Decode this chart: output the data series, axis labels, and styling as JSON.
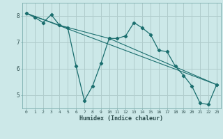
{
  "xlabel": "Humidex (Indice chaleur)",
  "bg_color": "#cce8e8",
  "grid_color": "#b0cccc",
  "line_color": "#1a6e6e",
  "xlim": [
    -0.5,
    23.5
  ],
  "ylim": [
    4.5,
    8.5
  ],
  "xticks": [
    0,
    1,
    2,
    3,
    4,
    5,
    6,
    7,
    8,
    9,
    10,
    11,
    12,
    13,
    14,
    15,
    16,
    17,
    18,
    19,
    20,
    21,
    22,
    23
  ],
  "yticks": [
    5,
    6,
    7,
    8
  ],
  "series1_x": [
    0,
    1,
    2,
    3,
    4,
    5,
    6,
    7,
    8,
    9,
    10,
    11,
    12,
    13,
    14,
    15,
    16,
    17,
    18,
    19,
    20,
    21,
    22,
    23
  ],
  "series1_y": [
    8.1,
    7.95,
    7.75,
    8.05,
    7.65,
    7.55,
    6.1,
    4.8,
    5.35,
    6.2,
    7.15,
    7.15,
    7.25,
    7.75,
    7.55,
    7.3,
    6.7,
    6.65,
    6.1,
    5.75,
    5.35,
    4.7,
    4.65,
    5.4
  ],
  "series2_x": [
    0,
    4,
    10,
    23
  ],
  "series2_y": [
    8.1,
    7.65,
    7.15,
    5.4
  ],
  "series3_x": [
    0,
    23
  ],
  "series3_y": [
    8.1,
    5.4
  ]
}
